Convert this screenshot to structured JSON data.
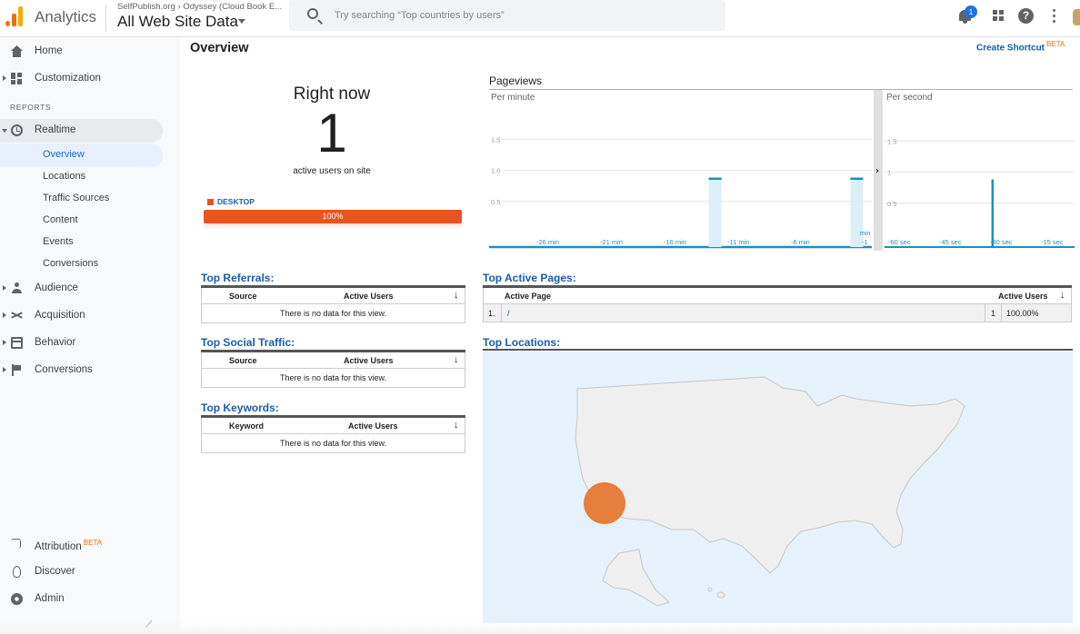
{
  "header": {
    "app_name": "Analytics",
    "breadcrumb": "SelfPublish.org  ›  Odyssey (Cloud Book E...",
    "view_name": "All Web Site Data",
    "search_placeholder": "Try searching “Top countries by users”",
    "notification_count": "1",
    "help_glyph": "?"
  },
  "sidebar": {
    "home": "Home",
    "customization": "Customization",
    "reports_label": "REPORTS",
    "realtime": "Realtime",
    "realtime_items": [
      "Overview",
      "Locations",
      "Traffic Sources",
      "Content",
      "Events",
      "Conversions"
    ],
    "audience": "Audience",
    "acquisition": "Acquisition",
    "behavior": "Behavior",
    "conversions": "Conversions",
    "attribution": "Attribution",
    "attribution_badge": "BETA",
    "discover": "Discover",
    "admin": "Admin"
  },
  "main": {
    "title": "Overview",
    "create_shortcut": "Create Shortcut",
    "create_shortcut_badge": "BETA",
    "right_now_label": "Right now",
    "active_users": "1",
    "active_users_caption": "active users on site",
    "device_label": "DESKTOP",
    "device_percent": "100%",
    "device_share": 1.0,
    "pageviews_title": "Pageviews",
    "per_minute_label": "Per minute",
    "per_second_label": "Per second",
    "colors": {
      "accent": "#1a5ea8",
      "device": "#e8531f",
      "chart": "#1a8fc4",
      "bubble": "#e67e3c"
    }
  },
  "chart_data": [
    {
      "type": "bar",
      "title": "Per minute",
      "y_ticks": [
        "1.5",
        "1.0",
        "0.5"
      ],
      "ylim": [
        0,
        2
      ],
      "x_ticks": [
        "-26 min",
        "-21 min",
        "-16 min",
        "-11 min",
        "-6 min",
        "-1"
      ],
      "x_tick_note": "min",
      "x": [
        -30,
        -29,
        -28,
        -27,
        -26,
        -25,
        -24,
        -23,
        -22,
        -21,
        -20,
        -19,
        -18,
        -17,
        -16,
        -15,
        -14,
        -13,
        -12,
        -11,
        -10,
        -9,
        -8,
        -7,
        -6,
        -5,
        -4,
        -3,
        -2,
        -1
      ],
      "values": [
        0,
        0,
        0,
        0,
        0,
        0,
        0,
        0,
        0,
        0,
        0,
        0,
        0,
        0,
        0,
        0,
        0,
        1,
        0,
        0,
        0,
        0,
        0,
        0,
        0,
        0,
        0,
        0,
        0,
        1
      ]
    },
    {
      "type": "bar",
      "title": "Per second",
      "y_ticks": [
        "1.5",
        "1",
        "0.5"
      ],
      "ylim": [
        0,
        2
      ],
      "x_ticks": [
        "-60 sec",
        "-45 sec",
        "-30 sec",
        "-15 sec"
      ],
      "spike_at_sec": -28,
      "values": [
        1
      ]
    }
  ],
  "tables": {
    "referrals": {
      "title": "Top Referrals:",
      "col1": "Source",
      "col2": "Active Users",
      "empty": "There is no data for this view."
    },
    "social": {
      "title": "Top Social Traffic:",
      "col1": "Source",
      "col2": "Active Users",
      "empty": "There is no data for this view."
    },
    "keywords": {
      "title": "Top Keywords:",
      "col1": "Keyword",
      "col2": "Active Users",
      "empty": "There is no data for this view."
    },
    "active_pages": {
      "title": "Top Active Pages:",
      "col1": "Active Page",
      "col2": "Active Users",
      "rows": [
        {
          "rank": "1.",
          "page": "/",
          "users": "1",
          "pct": "100.00%"
        }
      ]
    },
    "locations": {
      "title": "Top Locations:"
    }
  },
  "icons": {
    "sort": "↓",
    "expand_chart": "›"
  }
}
